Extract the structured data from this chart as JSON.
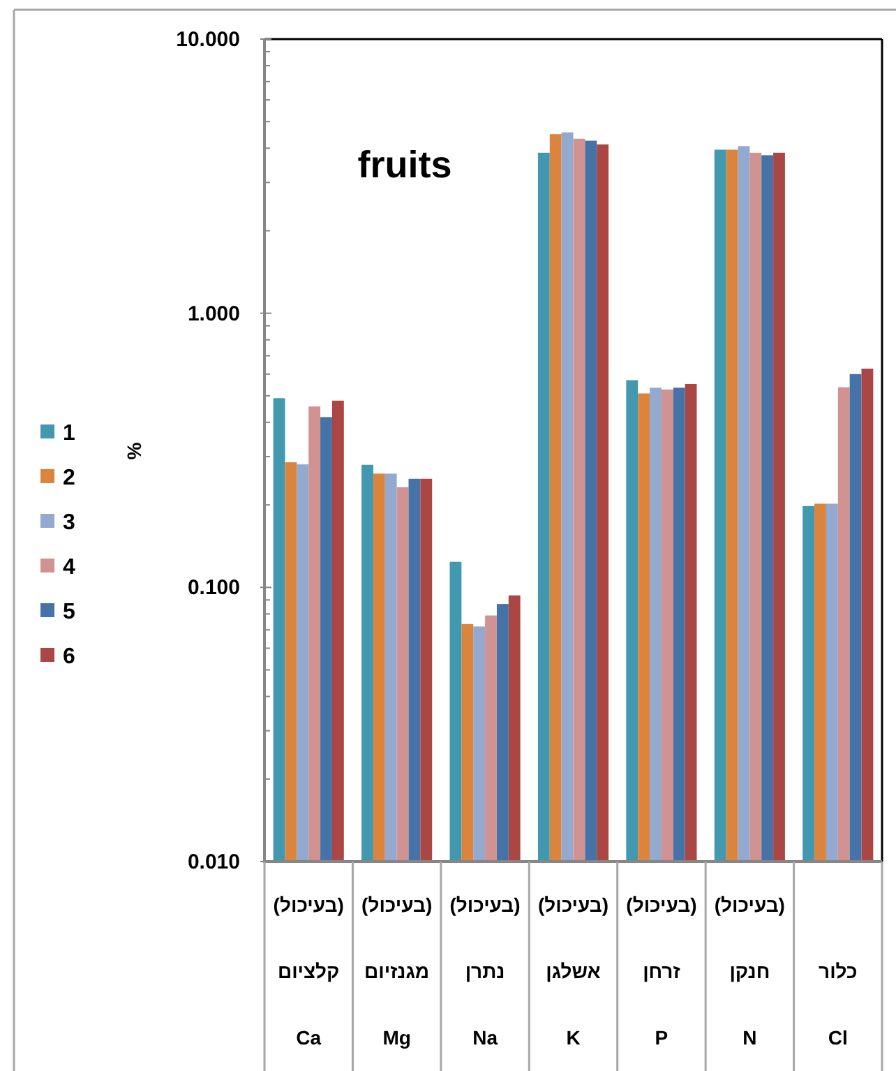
{
  "chart_data": {
    "type": "bar",
    "title": "fruits",
    "ylabel": "%",
    "categories": [
      "(בעיכול)\nקלציום\nCa",
      "(בעיכול)\nמגנזיום\nMg",
      "(בעיכול)\nנתרן\nNa",
      "(בעיכול)\nאשלגן\nK",
      "(בעיכול)\nזרחן\nP",
      "(בעיכול)\nחנקן\nN",
      "כלור\nCl"
    ],
    "series": [
      {
        "name": "1",
        "color": "#4198AF",
        "values": [
          0.49,
          0.28,
          0.124,
          3.85,
          0.57,
          3.95,
          0.198
        ]
      },
      {
        "name": "2",
        "color": "#DB843D",
        "values": [
          0.286,
          0.26,
          0.0735,
          4.5,
          0.51,
          3.95,
          0.202
        ]
      },
      {
        "name": "3",
        "color": "#93A9CF",
        "values": [
          0.281,
          0.26,
          0.072,
          4.57,
          0.535,
          4.07,
          0.202
        ]
      },
      {
        "name": "4",
        "color": "#D19392",
        "values": [
          0.457,
          0.232,
          0.079,
          4.33,
          0.527,
          3.85,
          0.537
        ]
      },
      {
        "name": "5",
        "color": "#4572A7",
        "values": [
          0.418,
          0.249,
          0.087,
          4.26,
          0.535,
          3.77,
          0.6
        ]
      },
      {
        "name": "6",
        "color": "#AA4643",
        "values": [
          0.48,
          0.249,
          0.0935,
          4.13,
          0.552,
          3.85,
          0.628
        ]
      }
    ],
    "log": true,
    "ylim": [
      0.01,
      10
    ],
    "yticks": [
      {
        "value": 0.01,
        "label": "0.010"
      },
      {
        "value": 0.1,
        "label": "0.100"
      },
      {
        "value": 1,
        "label": "1.000"
      },
      {
        "value": 10,
        "label": "10.000"
      }
    ],
    "legend": "left"
  }
}
